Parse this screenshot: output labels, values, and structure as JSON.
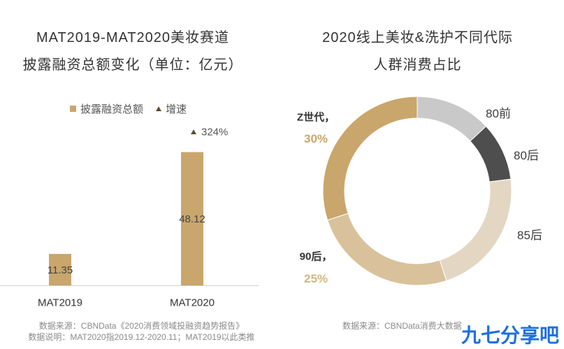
{
  "chart_data": [
    {
      "type": "bar",
      "title": [
        "MAT2019-MAT2020美妆赛道",
        "披露融资总额变化（单位：亿元）"
      ],
      "categories": [
        "MAT2019",
        "MAT2020"
      ],
      "series": [
        {
          "name": "披露融资总额",
          "values": [
            11.35,
            48.12
          ],
          "color": "#c9a66c"
        }
      ],
      "growth": {
        "name": "增速",
        "labels": [
          null,
          "324%"
        ],
        "color": "#5e4b2f",
        "icon": "triangle-up-icon"
      },
      "ylim": [
        0,
        50
      ],
      "grid": false,
      "legend_position": "top"
    },
    {
      "type": "pie",
      "donut": true,
      "title": [
        "2020线上美妆&洗护不同代际",
        "人群消费占比"
      ],
      "slices": [
        {
          "label": "80前",
          "value": 13,
          "color": "#c9c9c9"
        },
        {
          "label": "80后",
          "value": 10,
          "color": "#4e4e4e"
        },
        {
          "label": "85后",
          "value": 22,
          "color": "#e3d7c3"
        },
        {
          "label": "90后，",
          "value": 25,
          "value_label": "25%",
          "color": "#d9c29b"
        },
        {
          "label": "Z世代，",
          "value": 30,
          "value_label": "30%",
          "color": "#c9a66c"
        }
      ]
    }
  ],
  "footnotes": {
    "left": [
      "数据来源：CBNData《2020消费领域投融资趋势报告》",
      "数据说明：MAT2020指2019.12-2020.11；MAT2019以此类推"
    ],
    "right": [
      "数据来源：CBNData消费大数据"
    ]
  },
  "logo": {
    "text": "九七分享吧",
    "color": "#1b6fe0"
  }
}
